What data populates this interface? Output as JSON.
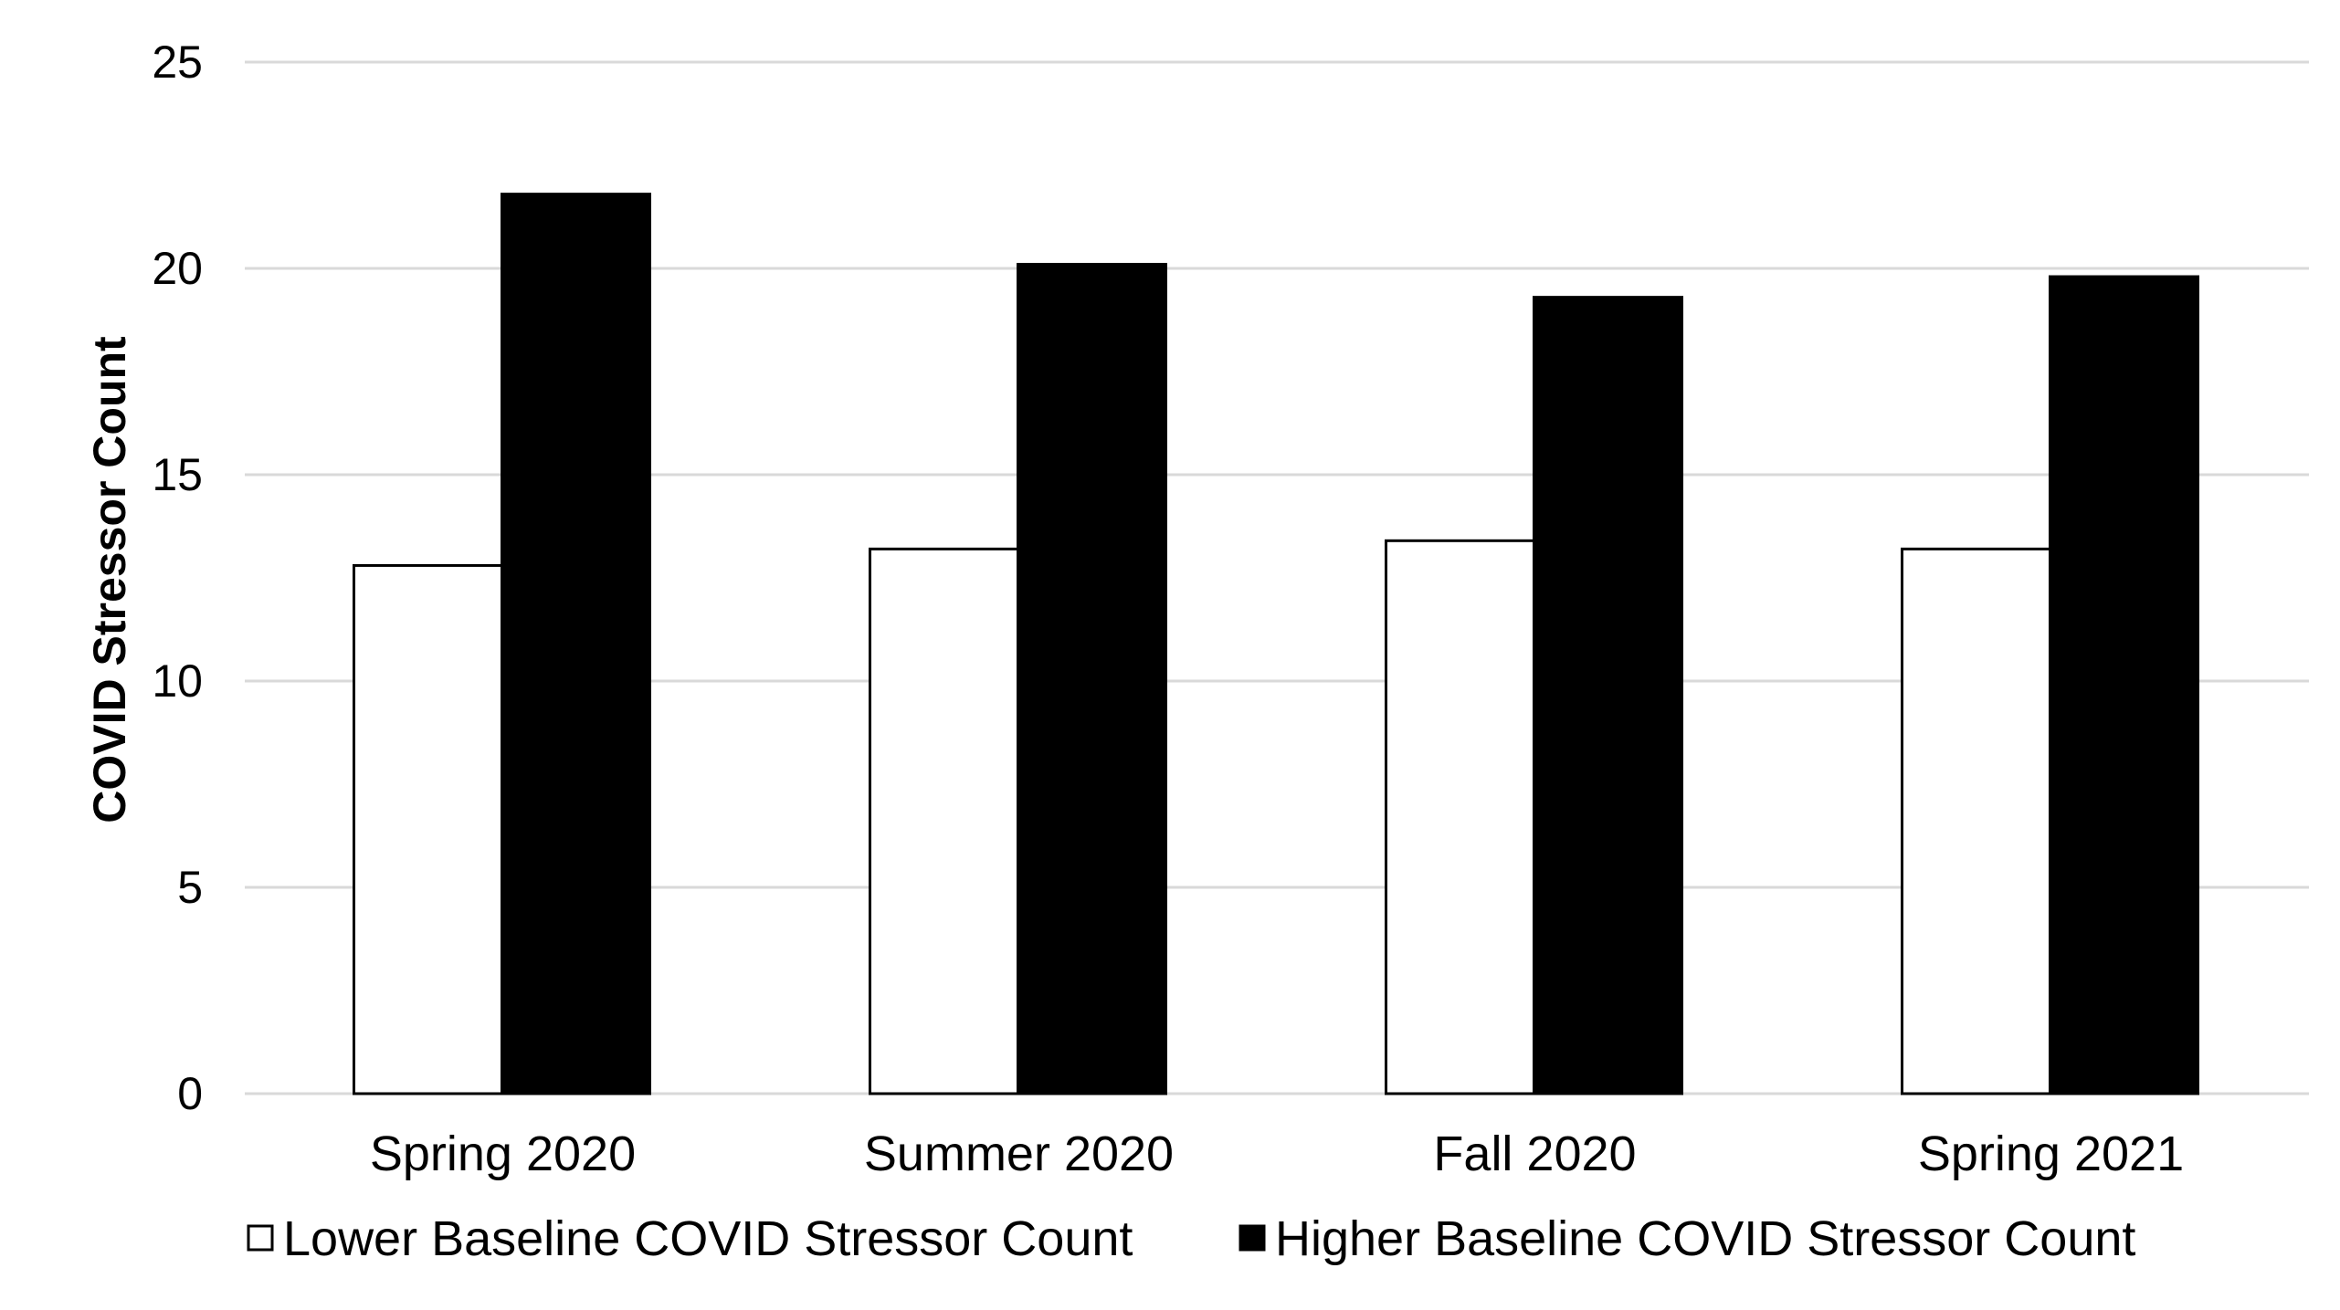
{
  "chart_data": {
    "type": "bar",
    "title": "",
    "xlabel": "",
    "ylabel": "COVID Stressor Count",
    "categories": [
      "Spring 2020",
      "Summer 2020",
      "Fall 2020",
      "Spring 2021"
    ],
    "series": [
      {
        "name": "Lower Baseline COVID Stressor Count",
        "values": [
          12.8,
          13.2,
          13.4,
          13.2
        ],
        "color": "#ffffff",
        "stroke": "#000000"
      },
      {
        "name": "Higher Baseline COVID Stressor Count",
        "values": [
          21.8,
          20.1,
          19.3,
          19.8
        ],
        "color": "#000000",
        "stroke": "#000000"
      }
    ],
    "ylim": [
      0,
      25
    ],
    "yticks": [
      0,
      5,
      10,
      15,
      20,
      25
    ],
    "grid": true,
    "legend_position": "bottom",
    "gridline_color": "#d9d9d9"
  }
}
